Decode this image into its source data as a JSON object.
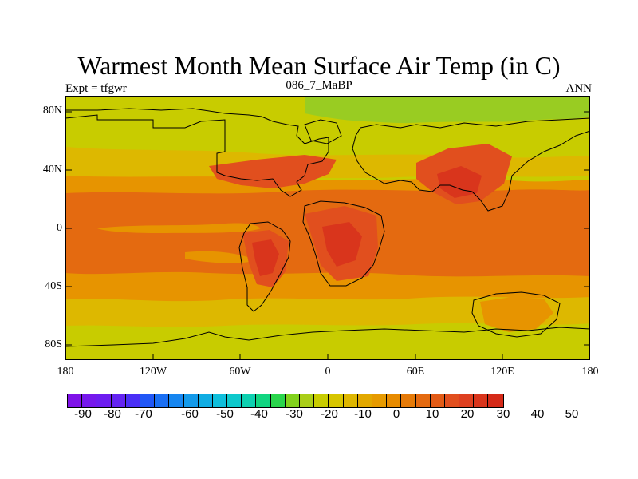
{
  "header": {
    "title": "Warmest Month Mean Surface Air Temp (in C)",
    "experiment": "Expt = tfgwr",
    "case": "086_7_MaBP",
    "season": "ANN"
  },
  "map": {
    "latitude_labels": [
      "80N",
      "40N",
      "0",
      "40S",
      "80S"
    ],
    "longitude_labels": [
      "180",
      "120W",
      "60W",
      "0",
      "60E",
      "120E",
      "180"
    ],
    "colors": {
      "cold_high_lat": "#99cc22",
      "mid_lat": "#c8cc00",
      "subtropics": "#ddb800",
      "warm": "#e79400",
      "tropics": "#e46a10",
      "hot_land": "#e14f1e",
      "hottest": "#d9351c"
    }
  },
  "colorbar": {
    "swatches": [
      "#7f12e8",
      "#7618ec",
      "#6d1df0",
      "#6424f2",
      "#4a2ff6",
      "#2157f6",
      "#1a6ff3",
      "#1686f0",
      "#139aea",
      "#10ade3",
      "#0fbfdc",
      "#0ec9cc",
      "#0dd0b0",
      "#11d580",
      "#2ad54c",
      "#82d21c",
      "#aace18",
      "#c8cc00",
      "#d7c500",
      "#deb600",
      "#e2a800",
      "#e69a00",
      "#e78b00",
      "#e57a08",
      "#e46a10",
      "#e25b16",
      "#e14f1e",
      "#de4020",
      "#d9351c",
      "#d52a18"
    ],
    "labels": [
      "-90",
      "-80",
      "-70",
      "-60",
      "-50",
      "-40",
      "-30",
      "-20",
      "-10",
      "0",
      "10",
      "20",
      "30",
      "40",
      "50"
    ]
  }
}
